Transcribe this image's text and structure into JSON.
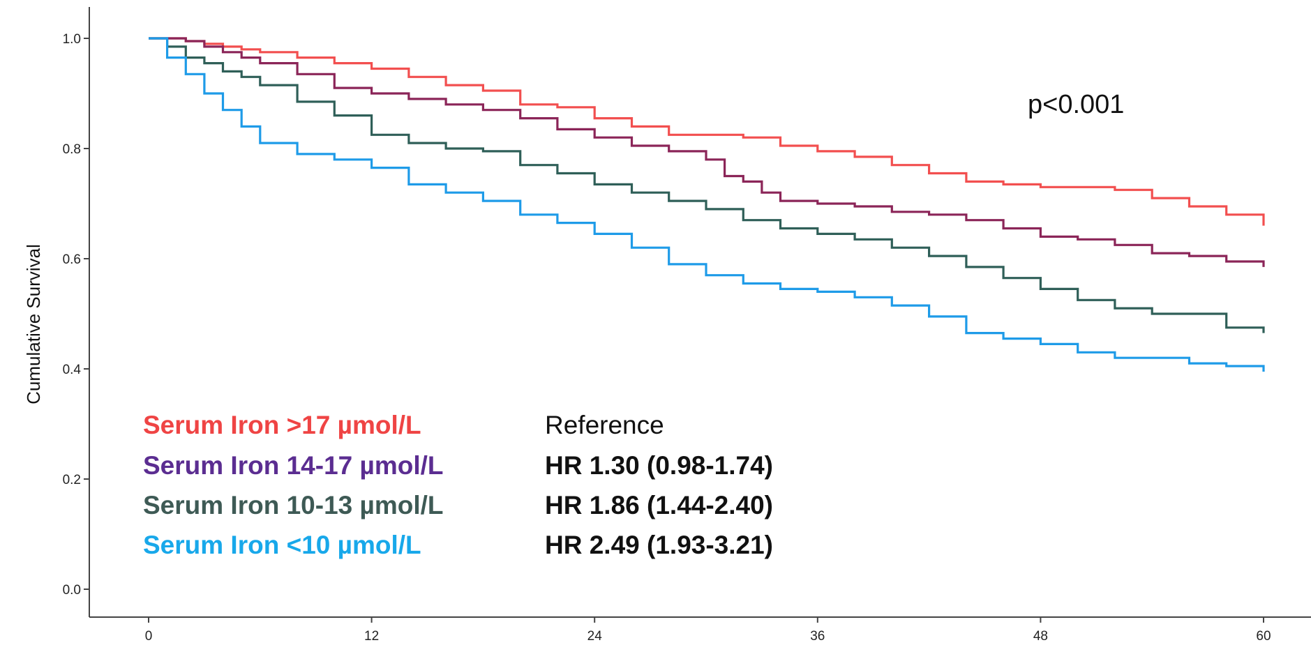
{
  "chart_data": {
    "type": "line",
    "ylabel": "Cumulative Survival",
    "xlabel": "",
    "xlim": [
      0,
      60
    ],
    "ylim": [
      0,
      1.0
    ],
    "x_ticks": [
      "0",
      "12",
      "24",
      "36",
      "48",
      "60"
    ],
    "y_ticks": [
      "0.0",
      "0.2",
      "0.4",
      "0.6",
      "0.8",
      "1.0"
    ],
    "grid": false,
    "annotation": "p<0.001",
    "colors": {
      "gt17": "#f24f4f",
      "14_17": "#8b2558",
      "10_13": "#2f5f58",
      "lt10": "#1e9be8"
    },
    "legend": [
      {
        "label": "Serum Iron >17 µmol/L",
        "hr": "Reference",
        "color": "#ef4444",
        "hr_bold": false
      },
      {
        "label": "Serum Iron 14-17 µmol/L",
        "hr": "HR 1.30 (0.98-1.74)",
        "color": "#5b2d91",
        "hr_bold": true
      },
      {
        "label": "Serum Iron 10-13 µmol/L",
        "hr": "HR 1.86 (1.44-2.40)",
        "color": "#3e5a55",
        "hr_bold": true
      },
      {
        "label": "Serum Iron <10 µmol/L",
        "hr": "HR 2.49 (1.93-3.21)",
        "color": "#18a8ea",
        "hr_bold": true
      }
    ],
    "series": [
      {
        "key": "gt17",
        "x": [
          0,
          1,
          2,
          3,
          4,
          5,
          6,
          8,
          10,
          12,
          14,
          16,
          18,
          20,
          22,
          24,
          26,
          28,
          30,
          32,
          34,
          36,
          38,
          40,
          42,
          44,
          46,
          48,
          50,
          52,
          54,
          56,
          58,
          60
        ],
        "y": [
          1.0,
          1.0,
          0.995,
          0.99,
          0.985,
          0.98,
          0.975,
          0.965,
          0.955,
          0.945,
          0.93,
          0.915,
          0.905,
          0.88,
          0.875,
          0.855,
          0.84,
          0.825,
          0.825,
          0.82,
          0.805,
          0.795,
          0.785,
          0.77,
          0.755,
          0.74,
          0.735,
          0.73,
          0.73,
          0.725,
          0.71,
          0.695,
          0.68,
          0.66
        ]
      },
      {
        "key": "14_17",
        "x": [
          0,
          1,
          2,
          3,
          4,
          5,
          6,
          8,
          10,
          12,
          14,
          16,
          18,
          20,
          22,
          24,
          26,
          28,
          30,
          31,
          32,
          33,
          34,
          36,
          38,
          40,
          42,
          44,
          46,
          48,
          50,
          52,
          54,
          56,
          58,
          60
        ],
        "y": [
          1.0,
          1.0,
          0.995,
          0.985,
          0.975,
          0.965,
          0.955,
          0.935,
          0.91,
          0.9,
          0.89,
          0.88,
          0.87,
          0.855,
          0.835,
          0.82,
          0.805,
          0.795,
          0.78,
          0.75,
          0.74,
          0.72,
          0.705,
          0.7,
          0.695,
          0.685,
          0.68,
          0.67,
          0.655,
          0.64,
          0.635,
          0.625,
          0.61,
          0.605,
          0.595,
          0.585
        ]
      },
      {
        "key": "10_13",
        "x": [
          0,
          1,
          2,
          3,
          4,
          5,
          6,
          8,
          10,
          12,
          14,
          16,
          18,
          20,
          22,
          24,
          26,
          28,
          30,
          32,
          34,
          36,
          38,
          40,
          42,
          44,
          46,
          48,
          50,
          52,
          54,
          56,
          58,
          60
        ],
        "y": [
          1.0,
          0.985,
          0.965,
          0.955,
          0.94,
          0.93,
          0.915,
          0.885,
          0.86,
          0.825,
          0.81,
          0.8,
          0.795,
          0.77,
          0.755,
          0.735,
          0.72,
          0.705,
          0.69,
          0.67,
          0.655,
          0.645,
          0.635,
          0.62,
          0.605,
          0.585,
          0.565,
          0.545,
          0.525,
          0.51,
          0.5,
          0.5,
          0.475,
          0.465
        ]
      },
      {
        "key": "lt10",
        "x": [
          0,
          1,
          2,
          3,
          4,
          5,
          6,
          8,
          10,
          12,
          14,
          16,
          18,
          20,
          22,
          24,
          26,
          28,
          30,
          32,
          34,
          36,
          38,
          40,
          42,
          44,
          46,
          48,
          50,
          52,
          54,
          56,
          58,
          60
        ],
        "y": [
          1.0,
          0.965,
          0.935,
          0.9,
          0.87,
          0.84,
          0.81,
          0.79,
          0.78,
          0.765,
          0.735,
          0.72,
          0.705,
          0.68,
          0.665,
          0.645,
          0.62,
          0.59,
          0.57,
          0.555,
          0.545,
          0.54,
          0.53,
          0.515,
          0.495,
          0.465,
          0.455,
          0.445,
          0.43,
          0.42,
          0.42,
          0.41,
          0.405,
          0.395
        ]
      }
    ]
  }
}
